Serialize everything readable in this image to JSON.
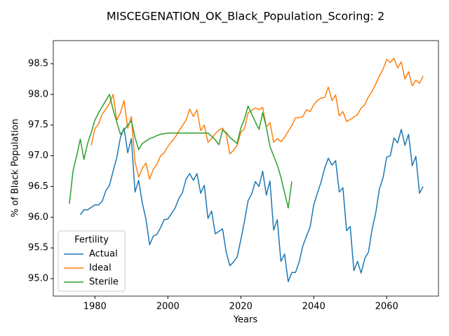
{
  "chart_data": {
    "type": "line",
    "title": "MISCEGENATION_OK_Black_Population_Scoring: 2",
    "xlabel": "Years",
    "ylabel": "% of Black Population",
    "legend_title": "Fertility",
    "legend_loc": "lower left",
    "xlim": [
      1968.6,
      2074.2
    ],
    "ylim": [
      94.715,
      98.876
    ],
    "xticks": [
      1980,
      2000,
      2020,
      2040,
      2060
    ],
    "yticks": [
      {
        "value": 95,
        "label": "95.0"
      },
      95.5,
      {
        "value": 96,
        "label": "96.0"
      },
      96.5,
      {
        "value": 97,
        "label": "97.0"
      },
      97.5,
      {
        "value": 98,
        "label": "98.0"
      },
      98.5
    ],
    "series": [
      {
        "name": "Actual",
        "color": "#1f77b4",
        "x": [
          1976,
          1977,
          1978,
          1979,
          1980,
          1981,
          1982,
          1983,
          1984,
          1985,
          1986,
          1987,
          1988,
          1989,
          1990,
          1991,
          1992,
          1993,
          1994,
          1995,
          1996,
          1997,
          1998,
          1999,
          2000,
          2001,
          2002,
          2003,
          2004,
          2005,
          2006,
          2007,
          2008,
          2009,
          2010,
          2011,
          2012,
          2013,
          2014,
          2015,
          2016,
          2017,
          2018,
          2019,
          2020,
          2021,
          2022,
          2023,
          2024,
          2025,
          2026,
          2027,
          2028,
          2029,
          2030,
          2031,
          2032,
          2033,
          2034,
          2035,
          2036,
          2037,
          2038,
          2039,
          2040,
          2041,
          2042,
          2043,
          2044,
          2045,
          2046,
          2047,
          2048,
          2049,
          2050,
          2051,
          2052,
          2053,
          2054,
          2055,
          2056,
          2057,
          2058,
          2059,
          2060,
          2061,
          2062,
          2063,
          2064,
          2065,
          2066,
          2067,
          2068,
          2069,
          2070
        ],
        "values": [
          96.04,
          96.12,
          96.12,
          96.16,
          96.2,
          96.2,
          96.26,
          96.43,
          96.52,
          96.75,
          96.97,
          97.3,
          97.45,
          97.05,
          97.28,
          96.41,
          96.6,
          96.23,
          95.97,
          95.55,
          95.69,
          95.72,
          95.83,
          95.96,
          95.97,
          96.06,
          96.15,
          96.3,
          96.4,
          96.62,
          96.71,
          96.6,
          96.71,
          96.39,
          96.52,
          95.98,
          96.1,
          95.73,
          95.77,
          95.81,
          95.43,
          95.21,
          95.27,
          95.35,
          95.63,
          95.93,
          96.27,
          96.38,
          96.58,
          96.5,
          96.75,
          96.36,
          96.59,
          95.79,
          95.96,
          95.28,
          95.4,
          94.95,
          95.1,
          95.1,
          95.27,
          95.53,
          95.69,
          95.84,
          96.2,
          96.39,
          96.57,
          96.8,
          96.96,
          96.85,
          96.92,
          96.41,
          96.48,
          95.78,
          95.85,
          95.13,
          95.28,
          95.09,
          95.33,
          95.43,
          95.8,
          96.07,
          96.46,
          96.64,
          96.98,
          97.0,
          97.29,
          97.21,
          97.43,
          97.17,
          97.35,
          96.84,
          96.99,
          96.39,
          96.5
        ]
      },
      {
        "name": "Ideal",
        "color": "#ff7f0e",
        "x": [
          1979,
          1980,
          1981,
          1982,
          1983,
          1984,
          1985,
          1986,
          1987,
          1988,
          1989,
          1990,
          1991,
          1992,
          1993,
          1994,
          1995,
          1996,
          1997,
          1998,
          1999,
          2000,
          2001,
          2002,
          2003,
          2004,
          2005,
          2006,
          2007,
          2008,
          2009,
          2010,
          2011,
          2012,
          2013,
          2014,
          2015,
          2016,
          2017,
          2018,
          2019,
          2020,
          2021,
          2022,
          2023,
          2024,
          2025,
          2026,
          2027,
          2028,
          2029,
          2030,
          2031,
          2032,
          2033,
          2034,
          2035,
          2036,
          2037,
          2038,
          2039,
          2040,
          2041,
          2042,
          2043,
          2044,
          2045,
          2046,
          2047,
          2048,
          2049,
          2050,
          2051,
          2052,
          2053,
          2054,
          2055,
          2056,
          2057,
          2058,
          2059,
          2060,
          2061,
          2062,
          2063,
          2064,
          2065,
          2066,
          2067,
          2068,
          2069,
          2070
        ],
        "values": [
          97.17,
          97.44,
          97.52,
          97.68,
          97.76,
          97.85,
          98.0,
          97.58,
          97.7,
          97.9,
          97.45,
          97.64,
          96.9,
          96.65,
          96.8,
          96.88,
          96.62,
          96.78,
          96.86,
          97.0,
          97.05,
          97.15,
          97.23,
          97.3,
          97.4,
          97.49,
          97.58,
          97.76,
          97.64,
          97.75,
          97.41,
          97.5,
          97.22,
          97.28,
          97.36,
          97.42,
          97.45,
          97.35,
          97.03,
          97.09,
          97.17,
          97.38,
          97.44,
          97.7,
          97.74,
          97.78,
          97.75,
          97.79,
          97.47,
          97.54,
          97.22,
          97.28,
          97.23,
          97.3,
          97.4,
          97.49,
          97.62,
          97.62,
          97.64,
          97.75,
          97.72,
          97.83,
          97.9,
          97.94,
          97.95,
          98.12,
          97.9,
          97.99,
          97.65,
          97.72,
          97.56,
          97.59,
          97.63,
          97.67,
          97.78,
          97.83,
          97.96,
          98.05,
          98.17,
          98.3,
          98.41,
          98.57,
          98.52,
          98.59,
          98.43,
          98.53,
          98.25,
          98.37,
          98.14,
          98.23,
          98.18,
          98.3
        ]
      },
      {
        "name": "Sterile",
        "color": "#2ca02c",
        "x": [
          1973,
          1974,
          1975,
          1976,
          1977,
          1978,
          1979,
          1980,
          1981,
          1982,
          1983,
          1984,
          1985,
          1986,
          1987,
          1988,
          1989,
          1990,
          1991,
          1992,
          1993,
          1994,
          1995,
          1996,
          1997,
          1998,
          1999,
          2000,
          2001,
          2002,
          2003,
          2004,
          2005,
          2006,
          2007,
          2008,
          2009,
          2010,
          2011,
          2012,
          2013,
          2014,
          2015,
          2016,
          2017,
          2018,
          2019,
          2020,
          2021,
          2022,
          2023,
          2024,
          2025,
          2026,
          2027,
          2028,
          2029,
          2030,
          2031,
          2032,
          2033,
          2034
        ],
        "values": [
          96.22,
          96.75,
          97.0,
          97.27,
          96.94,
          97.2,
          97.38,
          97.58,
          97.7,
          97.8,
          97.9,
          98.0,
          97.75,
          97.55,
          97.35,
          97.42,
          97.5,
          97.57,
          97.3,
          97.1,
          97.2,
          97.24,
          97.28,
          97.3,
          97.33,
          97.35,
          97.36,
          97.37,
          97.37,
          97.37,
          97.37,
          97.37,
          97.37,
          97.37,
          97.37,
          97.37,
          97.37,
          97.37,
          97.37,
          97.32,
          97.26,
          97.18,
          97.42,
          97.38,
          97.3,
          97.25,
          97.2,
          97.45,
          97.6,
          97.81,
          97.68,
          97.55,
          97.43,
          97.7,
          97.47,
          97.15,
          97.0,
          96.85,
          96.65,
          96.4,
          96.15,
          96.58
        ]
      }
    ]
  }
}
